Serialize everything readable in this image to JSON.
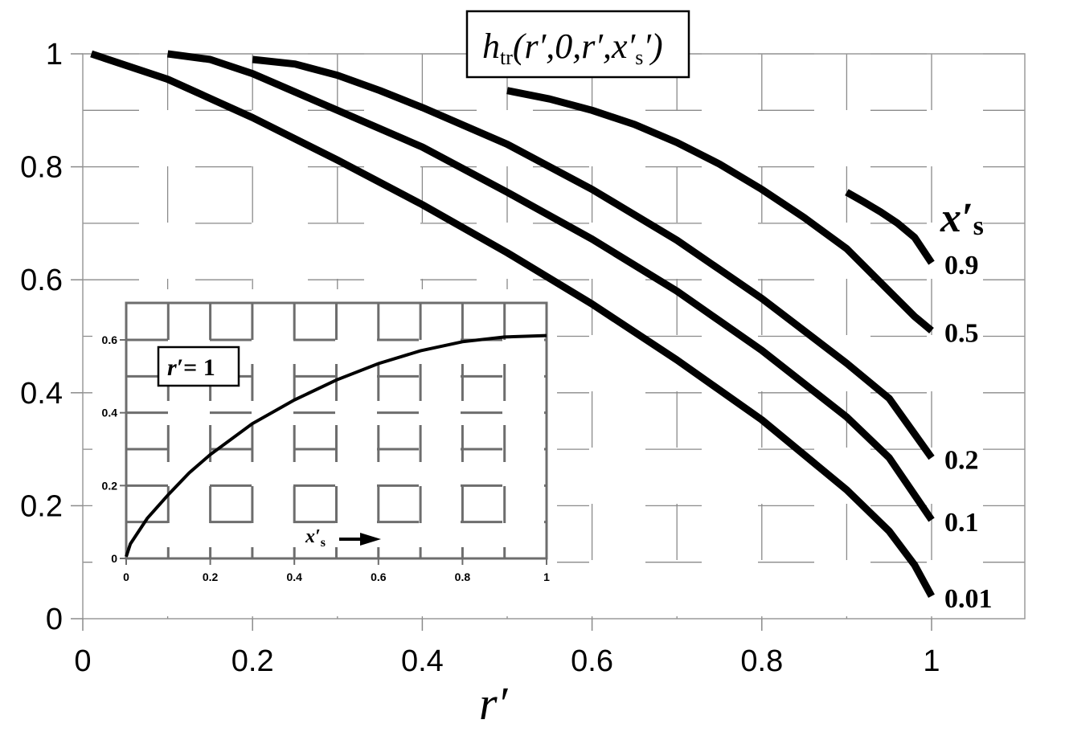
{
  "chart_data": [
    {
      "type": "line",
      "title": "h_tr(r′,0,r′,x′s)",
      "title_parts": {
        "h": "h",
        "sub": "tr",
        "args": "(r′,0,r′,x′",
        "xs_sub": "s",
        "close": "′)"
      },
      "xlabel": "r′",
      "ylabel": "",
      "xlim": [
        0,
        1.1
      ],
      "ylim": [
        0,
        1
      ],
      "x_ticks": [
        "0",
        "0.2",
        "0.4",
        "0.6",
        "0.8",
        "1"
      ],
      "y_ticks": [
        "0",
        "0.2",
        "0.4",
        "0.6",
        "0.8",
        "1"
      ],
      "grid": true,
      "legend_title": "x′s",
      "legend_title_parts": {
        "base": "x′",
        "sub": "s"
      },
      "series": [
        {
          "name": "0.01",
          "x": [
            0.01,
            0.1,
            0.2,
            0.3,
            0.4,
            0.5,
            0.6,
            0.7,
            0.8,
            0.9,
            0.95,
            0.98,
            1.0
          ],
          "y": [
            1.0,
            0.955,
            0.887,
            0.812,
            0.733,
            0.648,
            0.557,
            0.458,
            0.352,
            0.228,
            0.155,
            0.095,
            0.04
          ]
        },
        {
          "name": "0.1",
          "x": [
            0.1,
            0.15,
            0.2,
            0.3,
            0.4,
            0.5,
            0.6,
            0.7,
            0.8,
            0.9,
            0.95,
            1.0
          ],
          "y": [
            1.0,
            0.99,
            0.965,
            0.9,
            0.835,
            0.755,
            0.672,
            0.58,
            0.475,
            0.357,
            0.285,
            0.175
          ]
        },
        {
          "name": "0.2",
          "x": [
            0.2,
            0.25,
            0.3,
            0.35,
            0.4,
            0.5,
            0.6,
            0.7,
            0.8,
            0.9,
            0.95,
            1.0
          ],
          "y": [
            0.99,
            0.982,
            0.962,
            0.935,
            0.905,
            0.84,
            0.76,
            0.67,
            0.567,
            0.452,
            0.39,
            0.285
          ]
        },
        {
          "name": "0.5",
          "x": [
            0.5,
            0.55,
            0.6,
            0.65,
            0.7,
            0.75,
            0.8,
            0.85,
            0.9,
            0.95,
            0.98,
            1.0
          ],
          "y": [
            0.935,
            0.92,
            0.9,
            0.875,
            0.843,
            0.805,
            0.76,
            0.71,
            0.655,
            0.58,
            0.535,
            0.51
          ]
        },
        {
          "name": "0.9",
          "x": [
            0.9,
            0.92,
            0.94,
            0.96,
            0.98,
            1.0
          ],
          "y": [
            0.755,
            0.738,
            0.72,
            0.7,
            0.675,
            0.63
          ]
        }
      ]
    },
    {
      "type": "line",
      "title": "r′= 1",
      "title_parts": {
        "base": "r′",
        "rest": "= 1"
      },
      "xlabel": "x′s",
      "xlabel_parts": {
        "base": "x′",
        "sub": "s"
      },
      "ylabel": "",
      "xlim": [
        0,
        1
      ],
      "ylim": [
        0,
        0.65
      ],
      "x_ticks": [
        "0",
        "0.2",
        "0.4",
        "0.6",
        "0.8",
        "1"
      ],
      "y_ticks": [
        "0",
        "0.2",
        "0.4",
        "0.6"
      ],
      "grid": true,
      "series": [
        {
          "x": [
            0,
            0.01,
            0.05,
            0.1,
            0.15,
            0.2,
            0.3,
            0.4,
            0.5,
            0.6,
            0.7,
            0.8,
            0.9,
            1.0
          ],
          "y": [
            0.005,
            0.04,
            0.11,
            0.175,
            0.235,
            0.285,
            0.37,
            0.435,
            0.49,
            0.535,
            0.57,
            0.595,
            0.608,
            0.612
          ]
        }
      ]
    }
  ],
  "colors": {
    "curve": "#000000",
    "grid_main": "#8a8a8a",
    "grid_inset": "#6d6d6d",
    "axis": "#9a9a9a"
  }
}
